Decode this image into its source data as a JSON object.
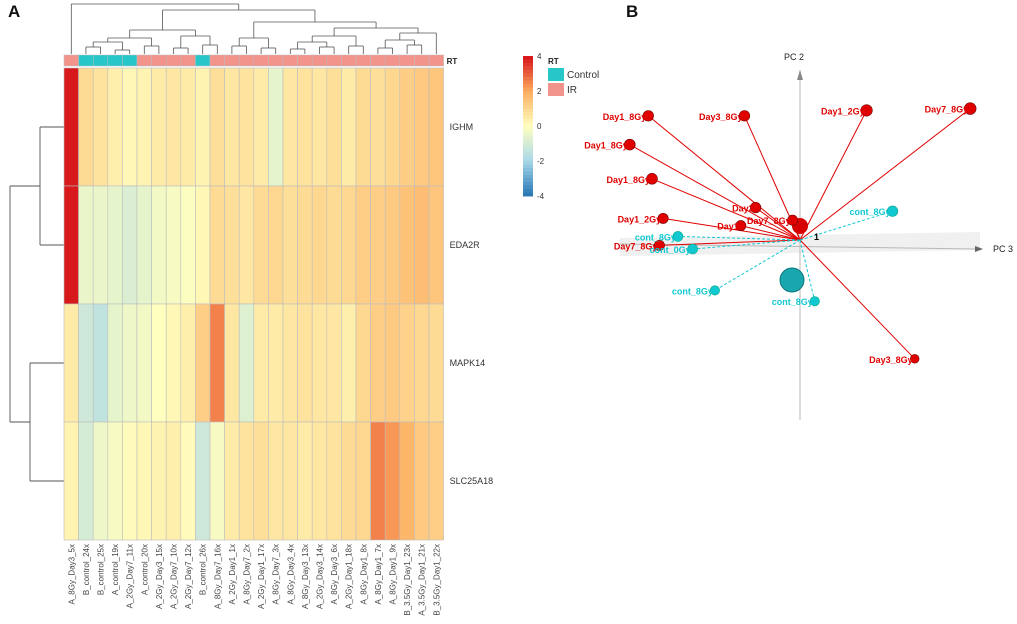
{
  "panels": {
    "a_label": "A",
    "b_label": "B"
  },
  "chart_data": [
    {
      "type": "heatmap",
      "title": "",
      "annotation_title": "RT",
      "annotation_legend": [
        {
          "label": "Control",
          "color": "#26c6c9"
        },
        {
          "label": "IR",
          "color": "#f2938c"
        }
      ],
      "color_scale": {
        "min": -4,
        "max": 4,
        "ticks": [
          4,
          2,
          0,
          -2,
          -4
        ],
        "colors": [
          "#2c7bb6",
          "#abd9e9",
          "#ffffbf",
          "#fdae61",
          "#d7191c"
        ]
      },
      "columns": [
        "A_8Gy_Day3_5x",
        "B_control_24x",
        "B_control_25x",
        "A_control_19x",
        "A_2Gy_Day7_11x",
        "A_control_20x",
        "A_2Gy_Day3_15x",
        "A_2Gy_Day7_10x",
        "A_2Gy_Day7_12x",
        "B_control_26x",
        "A_8Gy_Day7_16x",
        "A_2Gy_Day1_1x",
        "A_8Gy_Day7_2x",
        "A_2Gy_Day1_17x",
        "A_8Gy_Day7_3x",
        "A_8Gy_Day3_4x",
        "A_8Gy_Day3_13x",
        "A_2Gy_Day3_14x",
        "A_8Gy_Day3_6x",
        "A_2Gy_Day1_18x",
        "A_8Gy_Day1_8x",
        "A_8Gy_Day1_7x",
        "A_8Gy_Day1_9x",
        "B_3.5Gy_Day1_23x",
        "A_3.5Gy_Day1_21x",
        "B_3.5Gy_Day1_22x"
      ],
      "column_groups": [
        "IR",
        "Control",
        "Control",
        "Control",
        "Control",
        "IR",
        "IR",
        "IR",
        "IR",
        "Control",
        "IR",
        "IR",
        "IR",
        "IR",
        "IR",
        "IR",
        "IR",
        "IR",
        "IR",
        "IR",
        "IR",
        "IR",
        "IR",
        "IR",
        "IR",
        "IR"
      ],
      "rows": [
        "IGHM",
        "EDA2R",
        "MAPK14",
        "SLC25A18"
      ],
      "values": [
        [
          4.0,
          0.9,
          0.7,
          0.4,
          0.2,
          0.3,
          0.5,
          0.6,
          0.5,
          0.3,
          0.8,
          0.6,
          0.7,
          0.5,
          -0.6,
          0.6,
          0.7,
          0.6,
          0.8,
          0.5,
          0.9,
          0.8,
          1.0,
          1.2,
          1.3,
          1.4
        ],
        [
          4.0,
          -0.5,
          -0.5,
          -0.6,
          -0.9,
          -0.6,
          -0.3,
          -0.2,
          -0.1,
          0.2,
          0.9,
          0.8,
          0.6,
          0.9,
          1.0,
          0.8,
          0.9,
          1.0,
          0.9,
          1.0,
          1.2,
          1.2,
          1.3,
          1.5,
          1.6,
          1.4
        ],
        [
          0.5,
          -1.2,
          -1.5,
          -0.6,
          -0.4,
          -0.3,
          0.0,
          0.2,
          0.4,
          1.2,
          2.6,
          0.6,
          -0.8,
          0.5,
          0.5,
          0.6,
          0.7,
          0.6,
          0.6,
          0.4,
          1.0,
          1.2,
          1.3,
          1.1,
          1.0,
          0.9
        ],
        [
          0.3,
          -1.0,
          -0.4,
          -0.2,
          0.1,
          0.2,
          0.3,
          0.4,
          0.1,
          -1.2,
          -0.2,
          0.5,
          0.7,
          0.8,
          0.6,
          0.6,
          0.5,
          0.6,
          0.7,
          0.9,
          1.0,
          2.6,
          2.3,
          1.8,
          1.3,
          1.2
        ]
      ]
    },
    {
      "type": "scatter",
      "title": "",
      "axes": [
        "PC 2",
        "PC 3"
      ],
      "center_label": "1",
      "points": [
        {
          "label": "Day1_8Gy",
          "group": "IR",
          "x": -0.46,
          "y": 0.53,
          "z": 0.3
        },
        {
          "label": "Day1_8Gy",
          "group": "IR",
          "x": -0.41,
          "y": 0.69,
          "z": 0.2
        },
        {
          "label": "Day3_8Gy",
          "group": "IR",
          "x": -0.15,
          "y": 0.69,
          "z": 0.2
        },
        {
          "label": "Day1_2Gy",
          "group": "IR",
          "x": 0.18,
          "y": 0.72,
          "z": 0.5
        },
        {
          "label": "Day7_8Gy",
          "group": "IR",
          "x": 0.46,
          "y": 0.73,
          "z": 0.6
        },
        {
          "label": "Day1_8Gy",
          "group": "IR",
          "x": -0.4,
          "y": 0.34,
          "z": 0.3
        },
        {
          "label": "Day1_2Gy",
          "group": "IR",
          "x": -0.37,
          "y": 0.12,
          "z": 0.1
        },
        {
          "label": "Day3",
          "group": "IR",
          "x": -0.12,
          "y": 0.18,
          "z": 0.2
        },
        {
          "label": "Day7_8Gy",
          "group": "IR",
          "x": -0.38,
          "y": -0.03,
          "z": 0.1
        },
        {
          "label": "Day1",
          "group": "IR",
          "x": -0.16,
          "y": 0.08,
          "z": 0.1
        },
        {
          "label": "Day3_8Gy",
          "group": "IR",
          "x": 0.31,
          "y": -0.66,
          "z": -0.4
        },
        {
          "label": "Day7_8Gy",
          "group": "IR",
          "x": -0.02,
          "y": 0.11,
          "z": 0.1
        },
        {
          "label": "cont_8Gy",
          "group": "Control",
          "x": -0.33,
          "y": 0.02,
          "z": 0.0
        },
        {
          "label": "cont_0Gy",
          "group": "Control",
          "x": -0.29,
          "y": -0.05,
          "z": 0.0
        },
        {
          "label": "cont_8Gy",
          "group": "Control",
          "x": -0.23,
          "y": -0.28,
          "z": -0.2
        },
        {
          "label": "cont_8Gy",
          "group": "Control",
          "x": 0.04,
          "y": -0.34,
          "z": -0.2
        },
        {
          "label": "cont_8Gy",
          "group": "Control",
          "x": 0.25,
          "y": 0.16,
          "z": 0.2
        }
      ]
    }
  ]
}
